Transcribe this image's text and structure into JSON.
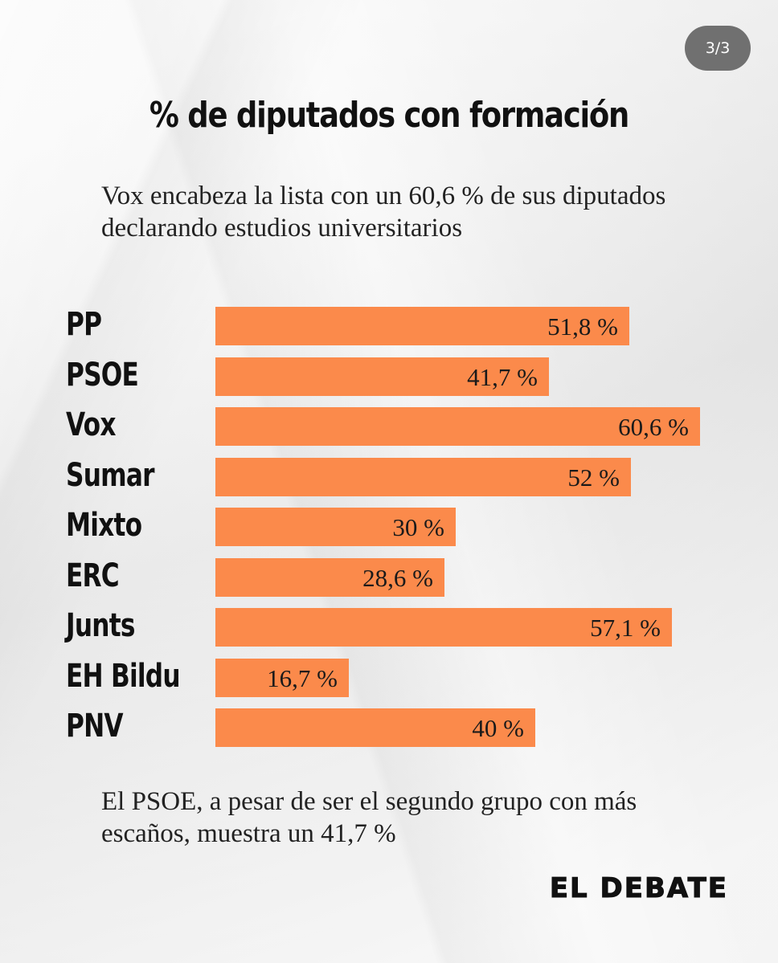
{
  "page_indicator": "3/3",
  "chart_data": {
    "type": "bar",
    "orientation": "horizontal",
    "title": "% de diputados con formación",
    "subtitle": "Vox encabeza la lista con un 60,6 % de sus diputados declarando estudios universitarios",
    "categories": [
      "PP",
      "PSOE",
      "Vox",
      "Sumar",
      "Mixto",
      "ERC",
      "Junts",
      "EH Bildu",
      "PNV"
    ],
    "values": [
      51.8,
      41.7,
      60.6,
      52,
      30,
      28.6,
      57.1,
      16.7,
      40
    ],
    "value_labels": [
      "51,8 %",
      "41,7 %",
      "60,6 %",
      "52 %",
      "30 %",
      "28,6 %",
      "57,1 %",
      "16,7 %",
      "40 %"
    ],
    "xlim": [
      0,
      60.6
    ],
    "bar_color": "#fb8a4b",
    "grid": false
  },
  "footnote": "El PSOE, a pesar de ser el segundo grupo con más escaños, muestra un 41,7 %",
  "brand": "EL DEBATE"
}
